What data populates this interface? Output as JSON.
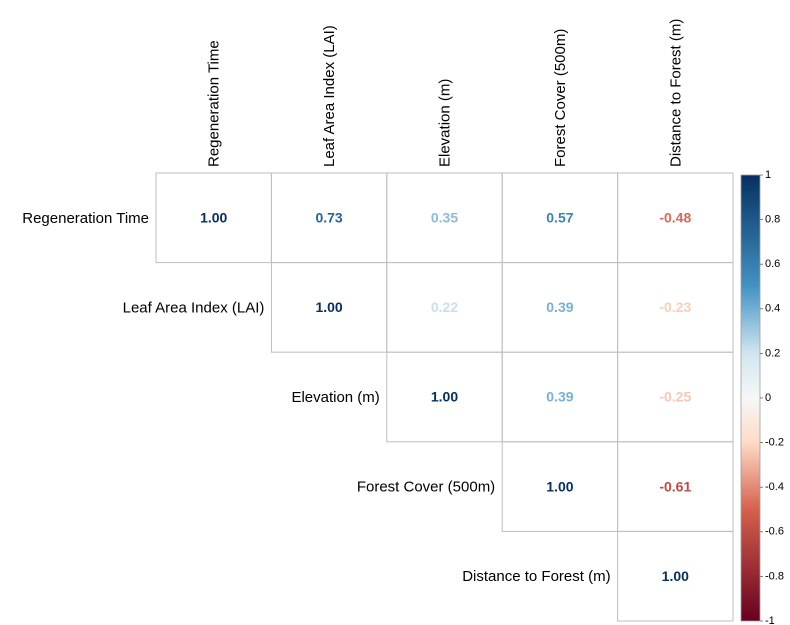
{
  "chart_data": {
    "type": "heatmap",
    "subtype": "correlation-matrix-upper",
    "variables": [
      "Regeneration Time",
      "Leaf Area Index (LAI)",
      "Elevation (m)",
      "Forest Cover (500m)",
      "Distance to Forest (m)"
    ],
    "matrix": [
      [
        1.0,
        0.73,
        0.35,
        0.57,
        -0.48
      ],
      [
        null,
        1.0,
        0.22,
        0.39,
        -0.23
      ],
      [
        null,
        null,
        1.0,
        0.39,
        -0.25
      ],
      [
        null,
        null,
        null,
        1.0,
        -0.61
      ],
      [
        null,
        null,
        null,
        null,
        1.0
      ]
    ],
    "labels": [
      [
        "1.00",
        "0.73",
        "0.35",
        "0.57",
        "-0.48"
      ],
      [
        "",
        "1.00",
        "0.22",
        "0.39",
        "-0.23"
      ],
      [
        "",
        "",
        "1.00",
        "0.39",
        "-0.25"
      ],
      [
        "",
        "",
        "",
        "1.00",
        "-0.61"
      ],
      [
        "",
        "",
        "",
        "",
        "1.00"
      ]
    ],
    "colorbar": {
      "range": [
        -1,
        1
      ],
      "ticks": [
        "1",
        "0.8",
        "0.6",
        "0.4",
        "0.2",
        "0",
        "-0.2",
        "-0.4",
        "-0.6",
        "-0.8",
        "-1"
      ],
      "tick_values": [
        1,
        0.8,
        0.6,
        0.4,
        0.2,
        0,
        -0.2,
        -0.4,
        -0.6,
        -0.8,
        -1
      ],
      "colors": {
        "negative_end": "#67001f",
        "neg_mid": "#d6604d",
        "neg_light": "#fddbc7",
        "zero": "#f7f7f7",
        "pos_light": "#d1e5f0",
        "pos_mid": "#4393c3",
        "positive_end": "#053061"
      }
    },
    "grid_color": "#bfbfbf"
  }
}
